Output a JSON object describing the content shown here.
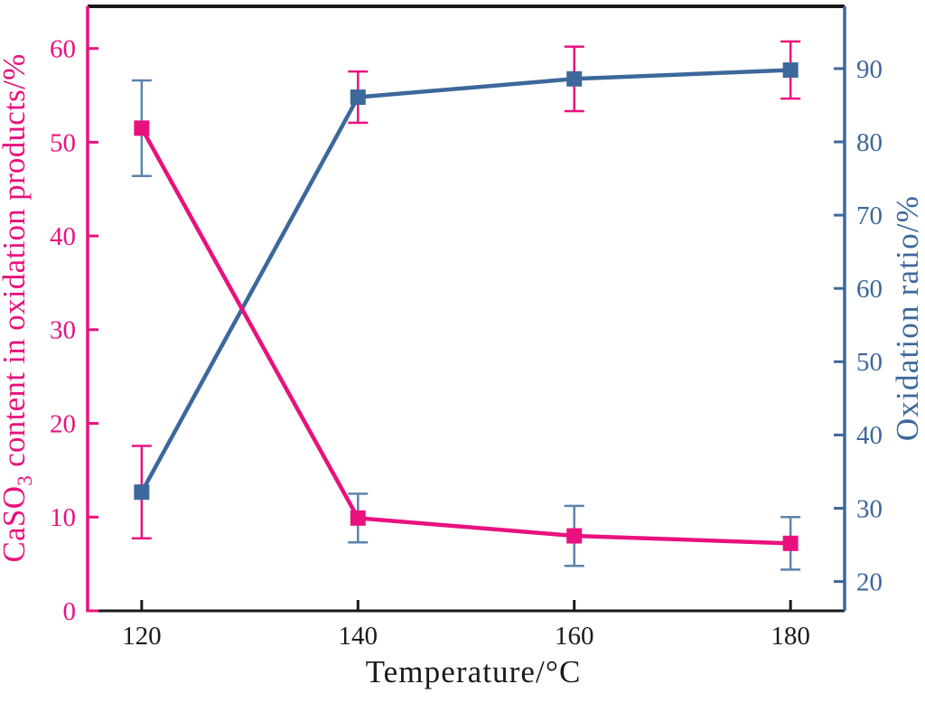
{
  "chart_data": {
    "type": "line",
    "x": [
      120,
      140,
      160,
      180
    ],
    "xticks": [
      "120",
      "140",
      "160",
      "180"
    ],
    "xlim": [
      115,
      185
    ],
    "xlabel": "Temperature/°C",
    "frame_color": "#1a1a1a",
    "left_axis": {
      "label": "CaSO3 content in oxidation products/%",
      "label_parts": [
        {
          "text": "CaSO"
        },
        {
          "text": "3",
          "subscript": true
        },
        {
          "text": " content in oxidation products/%"
        }
      ],
      "ticks": [
        0,
        10,
        20,
        30,
        40,
        50,
        60
      ],
      "ylim": [
        0,
        64.5
      ],
      "color": "#E9117E"
    },
    "right_axis": {
      "label": "Oxidation ratio/%",
      "ticks": [
        20,
        30,
        40,
        50,
        60,
        70,
        80,
        90
      ],
      "ylim": [
        16,
        98.5
      ],
      "color": "#3C689B"
    },
    "grid": false,
    "legend": null,
    "series": [
      {
        "id": "caso3-content",
        "name": "CaSO3 content in oxidation products",
        "axis": "left",
        "marker": "square",
        "color": "#E9117E",
        "error_color": "#5C83AC",
        "values": [
          51.5,
          9.9,
          8.0,
          7.2
        ],
        "errors": [
          5.1,
          2.6,
          3.2,
          2.8
        ]
      },
      {
        "id": "oxidation-ratio",
        "name": "Oxidation ratio",
        "axis": "right",
        "marker": "square",
        "color": "#3C689B",
        "error_color": "#E9117E",
        "values": [
          32.2,
          86.1,
          88.6,
          89.8
        ],
        "errors": [
          6.3,
          3.5,
          4.4,
          3.9
        ]
      }
    ]
  }
}
